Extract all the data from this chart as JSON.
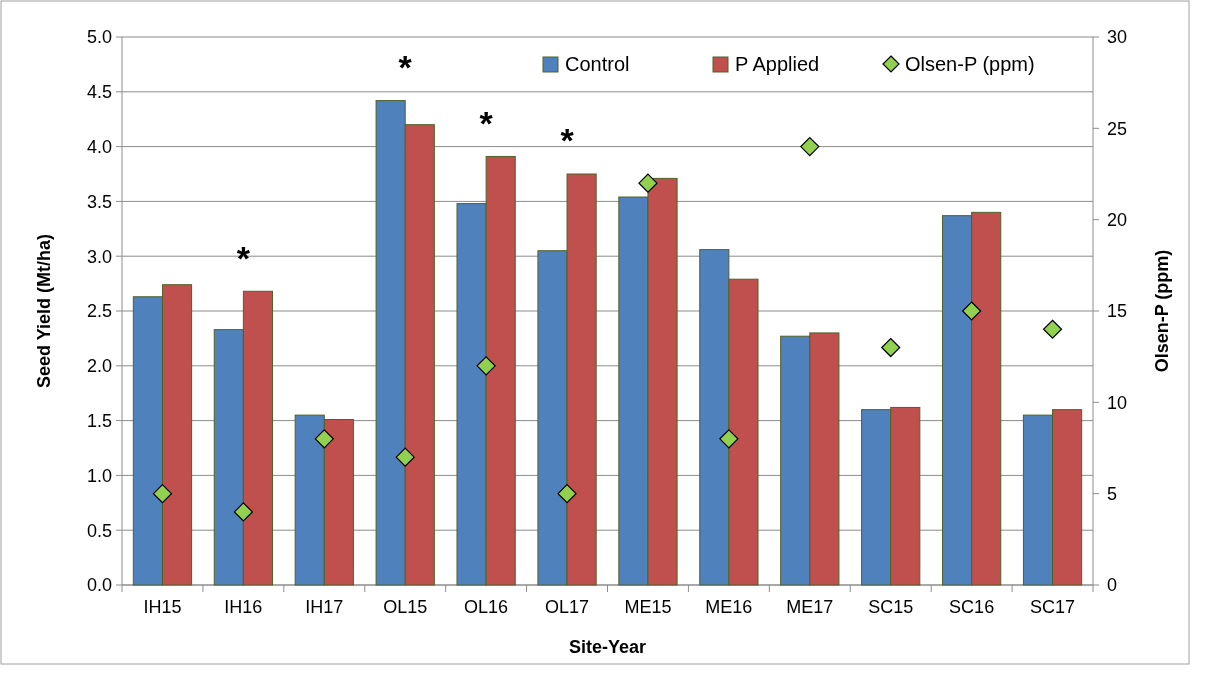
{
  "chart_data": {
    "type": "bar",
    "xlabel": "Site-Year",
    "ylabel": "Seed Yield (Mt/ha)",
    "y2label": "Olsen-P (ppm)",
    "categories": [
      "IH15",
      "IH16",
      "IH17",
      "OL15",
      "OL16",
      "OL17",
      "ME15",
      "ME16",
      "ME17",
      "SC15",
      "SC16",
      "SC17"
    ],
    "series": [
      {
        "name": "Control",
        "color": "#4f81bd",
        "values": [
          2.63,
          2.33,
          1.55,
          4.42,
          3.48,
          3.05,
          3.54,
          3.06,
          2.27,
          1.6,
          3.37,
          1.55
        ]
      },
      {
        "name": "P Applied",
        "color": "#c0504d",
        "values": [
          2.74,
          2.68,
          1.51,
          4.2,
          3.91,
          3.75,
          3.71,
          2.79,
          2.3,
          1.62,
          3.4,
          1.6
        ]
      },
      {
        "name": "Olsen-P (ppm)",
        "type": "scatter",
        "axis": "y2",
        "marker": "diamond",
        "color": "#92d050",
        "values": [
          5,
          4,
          8,
          7,
          12,
          5,
          22,
          8,
          24,
          13,
          15,
          14
        ]
      }
    ],
    "ylim": [
      0,
      5
    ],
    "yticks": [
      {
        "value": 0,
        "label": "0.0"
      },
      {
        "value": 0.5,
        "label": "0.5"
      },
      {
        "value": 1,
        "label": "1.0"
      },
      {
        "value": 1.5,
        "label": "1.5"
      },
      {
        "value": 2,
        "label": "2.0"
      },
      {
        "value": 2.5,
        "label": "2.5"
      },
      {
        "value": 3,
        "label": "3.0"
      },
      {
        "value": 3.5,
        "label": "3.5"
      },
      {
        "value": 4,
        "label": "4.0"
      },
      {
        "value": 4.5,
        "label": "4.5"
      },
      {
        "value": 5,
        "label": "5.0"
      }
    ],
    "y2lim": [
      0,
      30
    ],
    "y2ticks": [
      0,
      5,
      10,
      15,
      20,
      25,
      30
    ],
    "grid": "y",
    "legend": "top right",
    "annotations": [
      {
        "text": "*",
        "x": "IH16",
        "y": 2.68
      },
      {
        "text": "*",
        "x": "OL15",
        "y": 4.42
      },
      {
        "text": "*",
        "x": "OL16",
        "y": 3.91
      },
      {
        "text": "*",
        "x": "OL17",
        "y": 3.75
      }
    ]
  }
}
